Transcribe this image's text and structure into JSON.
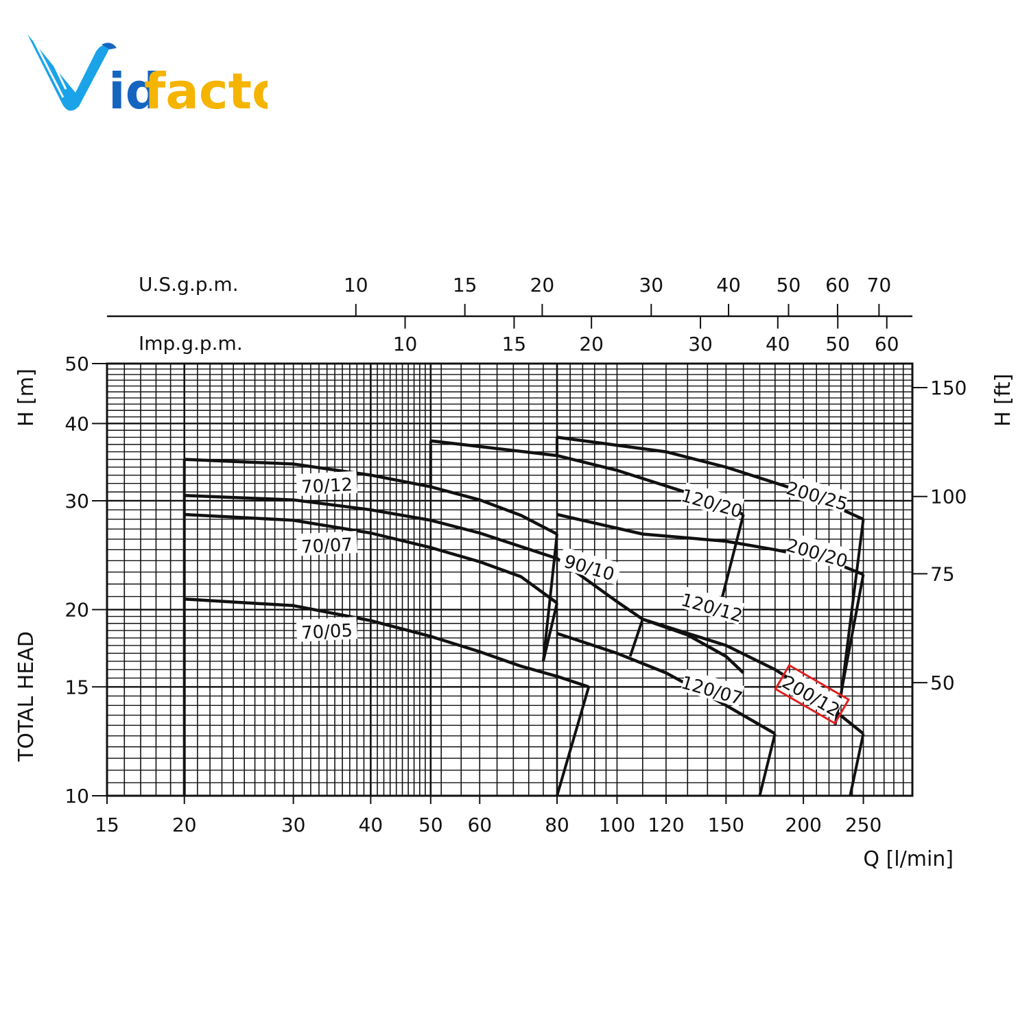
{
  "brand": {
    "logo_text_v": "V",
    "logo_text_id": "id",
    "logo_text_factor": "factor",
    "colors": {
      "blue": "#1aa3e8",
      "dark_blue": "#1565c0",
      "yellow": "#f5b400"
    }
  },
  "chart_data": {
    "type": "line",
    "title": "",
    "xlabel": "Q [l/min]",
    "ylabel_left": "TOTAL HEAD",
    "ylabel_left_unit": "H [m]",
    "ylabel_right_unit": "H [ft]",
    "x_scale": "log",
    "y_scale": "log",
    "xlim": [
      15,
      300
    ],
    "ylim": [
      10,
      50
    ],
    "x_ticks": [
      "15",
      "20",
      "30",
      "40",
      "50",
      "60",
      "80",
      "100",
      "120",
      "150",
      "200",
      "250"
    ],
    "y_ticks": [
      "10",
      "15",
      "20",
      "30",
      "40",
      "50"
    ],
    "y_right_ticks": [
      "50",
      "75",
      "100",
      "150"
    ],
    "top_axis_us": {
      "label": "U.S.g.p.m.",
      "ticks": [
        "10",
        "15",
        "20",
        "30",
        "40",
        "50",
        "60",
        "70"
      ]
    },
    "top_axis_imp": {
      "label": "Imp.g.p.m.",
      "ticks": [
        "10",
        "15",
        "20",
        "30",
        "40",
        "50",
        "60"
      ]
    },
    "grid": true,
    "highlight_color": "#e02020",
    "series": [
      {
        "name": "70/05",
        "points": [
          [
            20,
            20.8
          ],
          [
            30,
            20.3
          ],
          [
            40,
            19.2
          ],
          [
            50,
            18.1
          ],
          [
            60,
            17.1
          ],
          [
            70,
            16.2
          ],
          [
            80,
            15.6
          ],
          [
            90,
            15
          ]
        ]
      },
      {
        "name": "70/07",
        "points": [
          [
            20,
            28.5
          ],
          [
            30,
            27.9
          ],
          [
            40,
            26.6
          ],
          [
            50,
            25.2
          ],
          [
            60,
            23.9
          ],
          [
            70,
            22.6
          ],
          [
            80,
            20.5
          ]
        ]
      },
      {
        "name": "70/12",
        "points": [
          [
            20,
            35
          ],
          [
            30,
            34.4
          ],
          [
            40,
            33
          ],
          [
            50,
            31.6
          ],
          [
            60,
            30.1
          ],
          [
            70,
            28.4
          ],
          [
            80,
            26.5
          ]
        ]
      },
      {
        "name": "90/10",
        "points": [
          [
            20,
            30.6
          ],
          [
            30,
            30.1
          ],
          [
            40,
            29
          ],
          [
            50,
            27.9
          ],
          [
            60,
            26.6
          ],
          [
            80,
            24.2
          ],
          [
            100,
            20.6
          ],
          [
            110,
            19.3
          ]
        ]
      },
      {
        "name": "120/07",
        "points": [
          [
            80,
            18.3
          ],
          [
            100,
            17
          ],
          [
            120,
            15.8
          ],
          [
            150,
            14
          ],
          [
            180,
            12.6
          ]
        ]
      },
      {
        "name": "120/12",
        "points": [
          [
            110,
            19.3
          ],
          [
            130,
            18.2
          ],
          [
            150,
            16.8
          ],
          [
            160,
            15.8
          ]
        ]
      },
      {
        "name": "120/20",
        "points": [
          [
            50,
            37.5
          ],
          [
            80,
            35.5
          ],
          [
            100,
            33.6
          ],
          [
            130,
            30.9
          ],
          [
            160,
            28.5
          ]
        ]
      },
      {
        "name": "200/12",
        "points": [
          [
            110,
            19.3
          ],
          [
            150,
            17.5
          ],
          [
            180,
            16
          ],
          [
            210,
            14.5
          ],
          [
            250,
            12.6
          ]
        ]
      },
      {
        "name": "200/20",
        "points": [
          [
            80,
            28.5
          ],
          [
            110,
            26.5
          ],
          [
            150,
            25.8
          ],
          [
            180,
            25
          ],
          [
            220,
            24
          ],
          [
            250,
            22.8
          ]
        ]
      },
      {
        "name": "200/25",
        "points": [
          [
            80,
            38
          ],
          [
            120,
            36
          ],
          [
            150,
            34
          ],
          [
            200,
            31
          ],
          [
            250,
            28
          ]
        ]
      }
    ],
    "label_positions_series": [
      "70/12",
      "70/07",
      "70/05",
      "90/10",
      "120/20",
      "120/12",
      "120/07",
      "200/25",
      "200/20",
      "200/12"
    ],
    "annotations": [
      "70/12",
      "70/07",
      "70/05",
      "90/10",
      "120/20",
      "120/12",
      "120/07",
      "200/25",
      "200/20",
      "200/12"
    ]
  }
}
